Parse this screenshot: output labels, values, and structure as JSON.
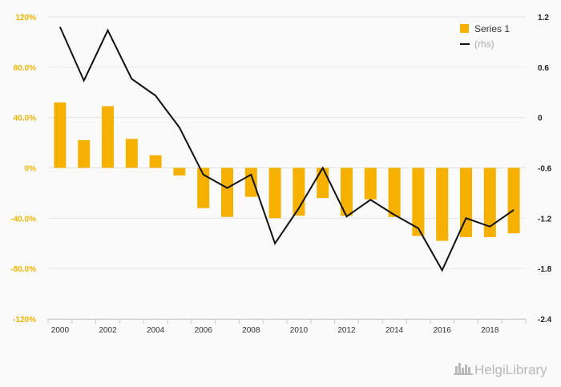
{
  "chart_data": {
    "type": "bar",
    "x": [
      "2000",
      "2001",
      "2002",
      "2003",
      "2004",
      "2005",
      "2006",
      "2007",
      "2008",
      "2009",
      "2010",
      "2011",
      "2012",
      "2013",
      "2014",
      "2015",
      "2016",
      "2017",
      "2018",
      "2019"
    ],
    "x_tick_labels": [
      "2000",
      "2002",
      "2004",
      "2006",
      "2008",
      "2010",
      "2012",
      "2014",
      "2016",
      "2018"
    ],
    "series": [
      {
        "name": "Series 1",
        "type": "bar",
        "axis": "left",
        "color": "#f5b000",
        "values": [
          52,
          22,
          49,
          23,
          10,
          -6,
          -32,
          -39,
          -23,
          -40,
          -38,
          -24,
          -38,
          -25,
          -39,
          -54,
          -58,
          -55,
          -55,
          -52
        ]
      },
      {
        "name": "(rhs)",
        "type": "line",
        "axis": "right",
        "color": "#111111",
        "values": [
          1.08,
          0.44,
          1.04,
          0.46,
          0.26,
          -0.12,
          -0.68,
          -0.84,
          -0.68,
          -1.5,
          -1.08,
          -0.6,
          -1.18,
          -0.98,
          -1.16,
          -1.32,
          -1.82,
          -1.2,
          -1.3,
          -1.1
        ]
      }
    ],
    "y_left": {
      "min": -120,
      "max": 120,
      "ticks": [
        120,
        80,
        40,
        0,
        -40,
        -80,
        -120
      ],
      "tick_labels": [
        "120%",
        "80.0%",
        "40.0%",
        "0%",
        "-40.0%",
        "-80.0%",
        "-120%"
      ]
    },
    "y_right": {
      "min": -2.4,
      "max": 1.2,
      "ticks": [
        1.2,
        0.6,
        0,
        -0.6,
        -1.2,
        -1.8,
        -2.4
      ],
      "tick_labels": [
        "1.2",
        "0.6",
        "0",
        "-0.6",
        "-1.2",
        "-1.8",
        "-2.4"
      ]
    },
    "grid": true,
    "legend_position": "top-right"
  },
  "legend": {
    "items": [
      {
        "label": "Series 1",
        "color": "#f5b000",
        "kind": "bar"
      },
      {
        "label": "(rhs)",
        "color": "#111111",
        "kind": "line"
      }
    ]
  },
  "watermark": {
    "text": "HelgiLibrary",
    "icon": "city-skyline-icon"
  },
  "colors": {
    "bar": "#f5b000",
    "line": "#111111",
    "left_axis_text": "#f0b400",
    "grid": "#e3e3e3",
    "background": "#fafafa"
  }
}
